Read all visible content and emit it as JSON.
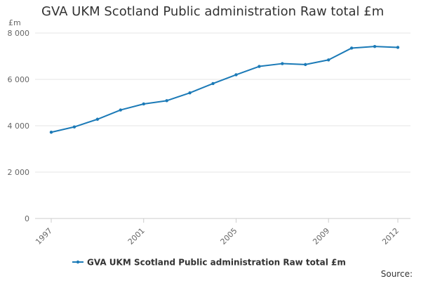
{
  "title": "GVA UKM Scotland Public administration Raw total £m",
  "y_unit_label": "£m",
  "source_label": "Source:",
  "colors": {
    "series": "#1b7ab7",
    "grid": "#e6e6e6",
    "axis_text": "#666666"
  },
  "chart_data": {
    "type": "line",
    "title": "GVA UKM Scotland Public administration Raw total £m",
    "xlabel": "",
    "ylabel": "£m",
    "ylim": [
      0,
      8000
    ],
    "yticks": [
      0,
      2000,
      4000,
      6000,
      8000
    ],
    "ytick_labels": [
      "0",
      "2 000",
      "4 000",
      "6 000",
      "8 000"
    ],
    "xticks": [
      1997,
      2001,
      2005,
      2009,
      2012
    ],
    "xtick_labels": [
      "1997",
      "2001",
      "2005",
      "2009",
      "2012"
    ],
    "grid": true,
    "legend": "bottom-center",
    "x": [
      1997,
      1998,
      1999,
      2000,
      2001,
      2002,
      2003,
      2004,
      2005,
      2006,
      2007,
      2008,
      2009,
      2010,
      2011,
      2012
    ],
    "series": [
      {
        "name": "GVA UKM Scotland Public administration Raw total £m",
        "values": [
          3720,
          3950,
          4280,
          4680,
          4940,
          5080,
          5420,
          5820,
          6200,
          6560,
          6680,
          6640,
          6840,
          7350,
          7420,
          7380
        ]
      }
    ]
  }
}
